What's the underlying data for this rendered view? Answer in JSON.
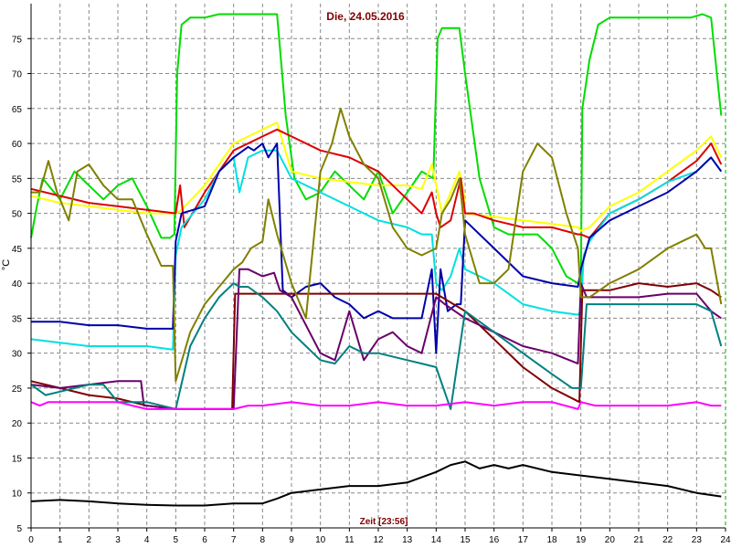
{
  "chart_data": {
    "type": "line",
    "title": "Die, 24.05.2016",
    "xlabel": "Zeit [23:56]",
    "ylabel": "°C",
    "xlim": [
      0,
      24
    ],
    "ylim": [
      5,
      80
    ],
    "xticks": [
      0,
      1,
      2,
      3,
      4,
      5,
      6,
      7,
      8,
      9,
      10,
      11,
      12,
      13,
      14,
      15,
      16,
      17,
      18,
      19,
      20,
      21,
      22,
      23,
      24
    ],
    "yticks": [
      5,
      10,
      15,
      20,
      25,
      30,
      35,
      40,
      45,
      50,
      55,
      60,
      65,
      70,
      75
    ],
    "grid": true,
    "series": [
      {
        "color": "#00dd00",
        "x": [
          0,
          0.2,
          0.4,
          0.6,
          1,
          1.5,
          2,
          2.5,
          3,
          3.5,
          4,
          4.5,
          4.8,
          4.95,
          5.05,
          5.2,
          5.5,
          6,
          6.5,
          7,
          8,
          8.5,
          8.8,
          9.1,
          9.5,
          10,
          10.5,
          11,
          11.5,
          12,
          12.5,
          13,
          13.5,
          13.9,
          14.05,
          14.2,
          14.8,
          15,
          15.5,
          16,
          16.5,
          17,
          17.5,
          18,
          18.5,
          18.9,
          19,
          19.05,
          19.3,
          19.6,
          20,
          21,
          22,
          22.8,
          23.2,
          23.5,
          23.85
        ],
        "y": [
          46.5,
          51,
          55,
          54,
          52,
          56,
          54,
          52,
          54,
          55,
          51,
          46.5,
          46.5,
          47,
          70,
          77,
          78,
          78,
          78.5,
          78.5,
          78.5,
          78.5,
          64,
          55,
          52,
          53,
          56,
          54,
          52,
          56,
          50,
          53,
          56,
          55,
          75,
          76.5,
          76.5,
          70,
          55,
          48,
          47,
          47,
          47,
          45,
          41,
          40,
          40,
          65,
          72,
          77,
          78,
          78,
          78,
          78,
          78.5,
          78,
          64
        ]
      },
      {
        "color": "#ffff00",
        "x": [
          0,
          1,
          2,
          3,
          4,
          5,
          5.2,
          6,
          6.5,
          7,
          8,
          8.5,
          9,
          10,
          11,
          12,
          13,
          13.5,
          13.85,
          14.2,
          14.8,
          14.95,
          15,
          16,
          17,
          18,
          18.9,
          19,
          19.3,
          20,
          21,
          22,
          23,
          23.5,
          23.85
        ],
        "y": [
          52.5,
          51.5,
          51,
          50.5,
          50,
          50,
          50.5,
          54,
          57,
          60,
          62,
          63,
          56,
          55,
          54.5,
          54,
          54,
          53.5,
          57,
          50,
          56,
          53,
          50,
          49.5,
          49,
          48.5,
          48,
          47.5,
          48,
          51,
          53,
          56,
          59,
          61,
          58
        ]
      },
      {
        "color": "#dd0000",
        "x": [
          0,
          1,
          2,
          3,
          4,
          5,
          5.15,
          5.3,
          6,
          6.5,
          7,
          8,
          8.5,
          9,
          10,
          11,
          12,
          13,
          13.5,
          13.85,
          14,
          14.15,
          14.5,
          14.85,
          15,
          15.3,
          16,
          17,
          18,
          18.9,
          19,
          19.3,
          20,
          21,
          22,
          23,
          23.5,
          23.85
        ],
        "y": [
          53.5,
          52.5,
          51.5,
          51,
          50.5,
          50,
          54,
          48,
          53,
          56,
          59,
          61,
          62,
          61,
          59,
          58,
          56,
          52,
          50,
          53,
          50,
          48,
          49,
          55,
          50,
          50,
          49,
          48,
          48,
          47,
          47,
          46.5,
          50,
          52,
          54.5,
          57.5,
          60,
          57
        ]
      },
      {
        "color": "#00e0e0",
        "x": [
          0,
          1,
          2,
          3,
          4,
          4.9,
          5,
          5.2,
          6,
          6.5,
          7,
          7.2,
          7.5,
          8,
          8.5,
          9,
          10,
          11,
          12,
          13,
          13.5,
          13.85,
          14,
          14.2,
          14.5,
          14.8,
          15,
          16,
          17,
          18,
          18.9,
          19,
          19.1,
          19.3,
          20,
          21,
          22,
          23,
          23.5,
          23.85
        ],
        "y": [
          32,
          31.5,
          31,
          31,
          31,
          30.5,
          44,
          48,
          52,
          56,
          58,
          53,
          58,
          59,
          59,
          55,
          53,
          51,
          49,
          48,
          47,
          47,
          40,
          39,
          41,
          45,
          42,
          40,
          37,
          36,
          35.5,
          36,
          44,
          46,
          50,
          52,
          54.5,
          56,
          58,
          56
        ]
      },
      {
        "color": "#0000aa",
        "x": [
          0,
          1,
          2,
          3,
          4,
          4.9,
          5,
          5.2,
          6,
          6.5,
          7,
          7.5,
          7.7,
          8,
          8.2,
          8.5,
          8.7,
          9,
          9.5,
          10,
          10.5,
          11,
          11.5,
          12,
          12.5,
          13,
          13.5,
          13.85,
          14,
          14.15,
          14.4,
          14.7,
          14.85,
          15,
          16,
          17,
          18,
          18.9,
          19,
          19.3,
          20,
          21,
          22,
          23,
          23.5,
          23.85
        ],
        "y": [
          34.5,
          34.5,
          34,
          34,
          33.5,
          33.5,
          46,
          50,
          51,
          56,
          58,
          59.5,
          59,
          60,
          58,
          60,
          39,
          38,
          39.5,
          40,
          38,
          37,
          35,
          36,
          35,
          35,
          35,
          42,
          30,
          42,
          36,
          37,
          37,
          49,
          45,
          41,
          40,
          39.5,
          42,
          46.5,
          49,
          51,
          53,
          56,
          58,
          56
        ]
      },
      {
        "color": "#800000",
        "x": [
          0,
          1,
          2,
          3,
          4,
          5,
          6,
          6.5,
          6.95,
          7.05,
          7.5,
          8,
          9,
          10,
          11,
          12,
          13,
          14,
          15,
          16,
          17,
          18,
          18.95,
          19.05,
          19.3,
          20,
          21,
          22,
          23,
          23.5,
          23.85
        ],
        "y": [
          26,
          25,
          24,
          23.5,
          22.5,
          22,
          22,
          22,
          22,
          38.5,
          38.5,
          38.5,
          38.5,
          38.5,
          38.5,
          38.5,
          38.5,
          38.5,
          36,
          32,
          28,
          25,
          23,
          39,
          39,
          39,
          40,
          39.5,
          40,
          39,
          38
        ]
      },
      {
        "color": "#6a006a",
        "x": [
          0,
          1,
          2,
          3,
          3.8,
          3.9,
          4,
          5,
          6,
          6.5,
          7,
          7.2,
          7.5,
          8,
          8.4,
          8.6,
          9,
          10,
          10.5,
          11,
          11.5,
          12,
          12.5,
          13,
          13.5,
          14,
          14.3,
          15,
          16,
          17,
          18,
          18.9,
          19,
          19.2,
          20,
          21,
          22,
          23,
          23.5,
          23.85
        ],
        "y": [
          25.5,
          25,
          25.5,
          26,
          26,
          22.5,
          22.5,
          22,
          22,
          22,
          22,
          42,
          42,
          41,
          41.5,
          39,
          38,
          30,
          29,
          36,
          29,
          32,
          33,
          31,
          30,
          38,
          37,
          35,
          33,
          31,
          30,
          28.5,
          40,
          38,
          38,
          38,
          38.5,
          38.5,
          36,
          35
        ]
      },
      {
        "color": "#008080",
        "x": [
          0,
          0.5,
          1,
          2,
          2.5,
          3,
          3.5,
          4,
          5,
          5.5,
          6,
          6.5,
          7,
          7.2,
          7.5,
          8,
          8.5,
          9,
          9.5,
          10,
          10.5,
          11,
          11.5,
          12,
          13,
          13.5,
          14,
          14.5,
          15,
          16,
          17,
          18,
          18.7,
          19,
          19.2,
          20,
          21,
          22,
          23,
          23.5,
          23.85
        ],
        "y": [
          25.5,
          24,
          24.5,
          25.5,
          25.5,
          23,
          23,
          23,
          22,
          31,
          35,
          38,
          40,
          39.5,
          39.5,
          38,
          36,
          33,
          31,
          29,
          28.5,
          31,
          30,
          30,
          29,
          28.5,
          28,
          22,
          36,
          33,
          30,
          27,
          25,
          25,
          37,
          37,
          37,
          37,
          37,
          36,
          31
        ]
      },
      {
        "color": "#808000",
        "x": [
          0,
          0.3,
          0.6,
          0.9,
          1.3,
          1.6,
          2,
          2.5,
          3,
          3.5,
          4,
          4.5,
          4.9,
          5,
          5.5,
          6,
          6.5,
          7,
          7.3,
          7.6,
          8,
          8.2,
          8.5,
          9,
          9.2,
          9.5,
          10,
          10.4,
          10.7,
          11,
          11.5,
          12,
          12.5,
          13,
          13.5,
          14,
          14.2,
          14.5,
          14.8,
          15,
          15.5,
          16,
          16.5,
          17,
          17.5,
          18,
          18.5,
          18.9,
          19,
          19.3,
          20,
          21,
          22,
          22.5,
          23,
          23.3,
          23.5,
          23.85
        ],
        "y": [
          53,
          53,
          57.5,
          53,
          49,
          56,
          57,
          54,
          52,
          52,
          47,
          42.5,
          42.5,
          26,
          33,
          37,
          39.5,
          42,
          43,
          45,
          46,
          52,
          47,
          40,
          38,
          35,
          56,
          60,
          65,
          61,
          57,
          55,
          48,
          45,
          44,
          45,
          50,
          52,
          55,
          47,
          40,
          40,
          42,
          56,
          60,
          58,
          50,
          45,
          38,
          38,
          40,
          42,
          45,
          46,
          47,
          45,
          45,
          37
        ]
      },
      {
        "color": "#ff00ff",
        "x": [
          0,
          0.3,
          0.6,
          1,
          2,
          3,
          3.5,
          4,
          5,
          6,
          7,
          7.5,
          8,
          9,
          10,
          11,
          12,
          13,
          14,
          15,
          16,
          17,
          18,
          18.9,
          19,
          19.5,
          20,
          21,
          22,
          23,
          23.5,
          23.85
        ],
        "y": [
          23,
          22.5,
          23,
          23,
          23,
          23,
          22.5,
          22,
          22,
          22,
          22,
          22.5,
          22.5,
          23,
          22.5,
          22.5,
          23,
          22.5,
          22.5,
          23,
          22.5,
          23,
          23,
          22,
          23,
          22.5,
          22.5,
          22.5,
          22.5,
          23,
          22.5,
          22.5
        ]
      },
      {
        "color": "#000000",
        "x": [
          0,
          1,
          2,
          3,
          4,
          5,
          6,
          7,
          8,
          8.5,
          9,
          10,
          11,
          12,
          13,
          14,
          14.5,
          15,
          15.5,
          16,
          16.5,
          17,
          18,
          19,
          20,
          21,
          22,
          23,
          23.85
        ],
        "y": [
          8.8,
          9,
          8.8,
          8.5,
          8.3,
          8.2,
          8.2,
          8.5,
          8.5,
          9.2,
          10,
          10.5,
          11,
          11,
          11.5,
          13,
          14,
          14.5,
          13.5,
          14,
          13.5,
          14,
          13,
          12.5,
          12,
          11.5,
          11,
          10,
          9.5
        ]
      }
    ]
  }
}
